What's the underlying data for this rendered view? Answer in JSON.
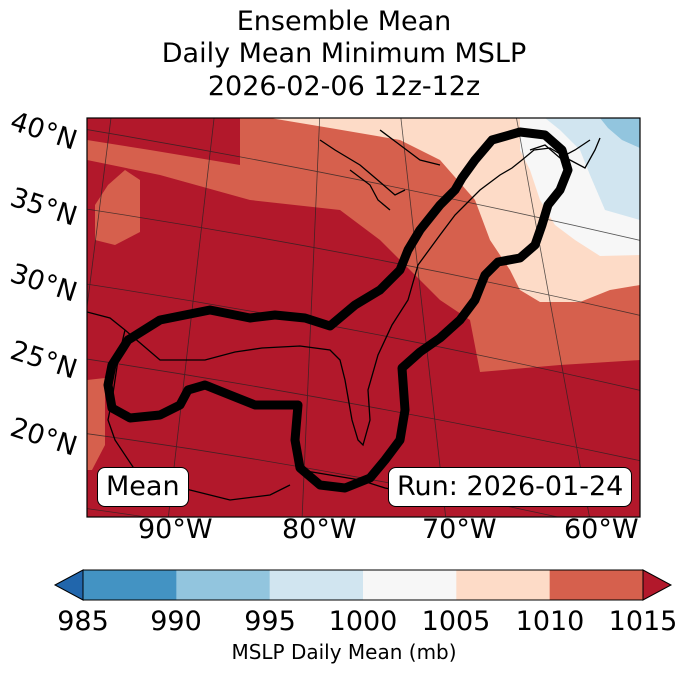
{
  "title": {
    "line1": "Ensemble Mean",
    "line2": "Daily Mean Minimum MSLP",
    "line3": "2026-02-06 12z-12z"
  },
  "map": {
    "lat_labels": [
      "40°N",
      "35°N",
      "30°N",
      "25°N",
      "20°N"
    ],
    "lon_labels": [
      "90°W",
      "80°W",
      "70°W",
      "60°W"
    ],
    "mean_label": "Mean",
    "run_label": "Run: 2026-01-24"
  },
  "colorbar": {
    "label": "MSLP Daily Mean (mb)",
    "ticks": [
      "985",
      "990",
      "995",
      "1000",
      "1005",
      "1010",
      "1015"
    ],
    "colors": [
      "#2166ac",
      "#4393c3",
      "#92c5de",
      "#d1e5f0",
      "#f7f7f7",
      "#fddbc7",
      "#d6604d",
      "#b2182b"
    ]
  }
}
